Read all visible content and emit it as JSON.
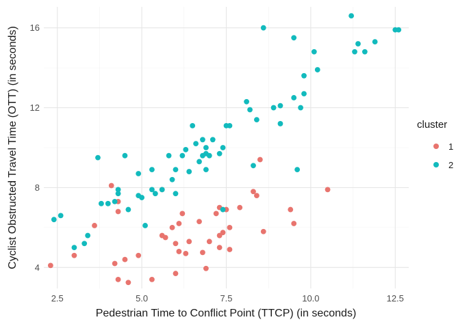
{
  "chart_data": {
    "type": "scatter",
    "title": "",
    "xlabel": "Pedestrian Time to Conflict Point (TTCP) (in seconds)",
    "ylabel": "Cyclist Obstructed Travel Time (OTT) (in seconds)",
    "xlim": [
      2.1,
      12.9
    ],
    "ylim": [
      2.95,
      17.05
    ],
    "x_ticks": [
      2.5,
      5.0,
      7.5,
      10.0,
      12.5
    ],
    "x_tick_labels": [
      "2.5",
      "5.0",
      "7.5",
      "10.0",
      "12.5"
    ],
    "y_ticks": [
      4,
      8,
      12,
      16
    ],
    "y_tick_labels": [
      "4",
      "8",
      "12",
      "16"
    ],
    "grid": true,
    "legend": {
      "title": "cluster",
      "position": "right"
    },
    "series": [
      {
        "name": "1",
        "color": "#E8746E",
        "points": [
          [
            2.3,
            4.1
          ],
          [
            3.0,
            4.6
          ],
          [
            3.6,
            6.1
          ],
          [
            4.1,
            8.1
          ],
          [
            4.2,
            4.2
          ],
          [
            4.3,
            6.8
          ],
          [
            4.3,
            3.4
          ],
          [
            4.3,
            7.3
          ],
          [
            4.5,
            4.4
          ],
          [
            4.6,
            3.25
          ],
          [
            4.9,
            4.6
          ],
          [
            5.3,
            3.4
          ],
          [
            5.6,
            7.9
          ],
          [
            5.6,
            5.6
          ],
          [
            5.7,
            5.5
          ],
          [
            5.9,
            6.0
          ],
          [
            6.0,
            3.7
          ],
          [
            6.0,
            5.2
          ],
          [
            6.1,
            4.8
          ],
          [
            6.1,
            6.2
          ],
          [
            6.2,
            6.7
          ],
          [
            6.3,
            4.7
          ],
          [
            6.4,
            5.3
          ],
          [
            6.7,
            6.3
          ],
          [
            6.8,
            4.75
          ],
          [
            6.9,
            3.95
          ],
          [
            7.0,
            5.3
          ],
          [
            7.2,
            6.7
          ],
          [
            7.3,
            7.0
          ],
          [
            7.3,
            5.6
          ],
          [
            7.3,
            5.0
          ],
          [
            7.4,
            5.75
          ],
          [
            7.5,
            6.9
          ],
          [
            7.6,
            6.0
          ],
          [
            7.6,
            4.9
          ],
          [
            7.9,
            7.0
          ],
          [
            8.3,
            7.8
          ],
          [
            8.4,
            7.6
          ],
          [
            8.5,
            9.4
          ],
          [
            8.6,
            5.8
          ],
          [
            9.4,
            6.9
          ],
          [
            9.5,
            6.2
          ],
          [
            10.5,
            7.9
          ]
        ]
      },
      {
        "name": "2",
        "color": "#12BABD",
        "points": [
          [
            2.4,
            6.4
          ],
          [
            2.6,
            6.6
          ],
          [
            3.0,
            5.0
          ],
          [
            3.3,
            5.2
          ],
          [
            3.4,
            5.6
          ],
          [
            3.7,
            9.5
          ],
          [
            3.8,
            7.2
          ],
          [
            4.0,
            7.2
          ],
          [
            4.2,
            7.3
          ],
          [
            4.3,
            7.7
          ],
          [
            4.3,
            7.9
          ],
          [
            4.5,
            9.6
          ],
          [
            4.6,
            6.9
          ],
          [
            4.9,
            8.7
          ],
          [
            4.9,
            7.6
          ],
          [
            5.0,
            7.5
          ],
          [
            5.1,
            6.1
          ],
          [
            5.3,
            8.9
          ],
          [
            5.3,
            7.9
          ],
          [
            5.4,
            7.7
          ],
          [
            5.6,
            7.9
          ],
          [
            5.8,
            9.6
          ],
          [
            5.9,
            8.4
          ],
          [
            6.0,
            8.9
          ],
          [
            6.0,
            7.7
          ],
          [
            6.2,
            9.6
          ],
          [
            6.3,
            9.9
          ],
          [
            6.4,
            8.8
          ],
          [
            6.5,
            11.1
          ],
          [
            6.6,
            10.2
          ],
          [
            6.7,
            9.3
          ],
          [
            6.8,
            10.4
          ],
          [
            6.8,
            9.6
          ],
          [
            6.9,
            10.0
          ],
          [
            6.9,
            9.7
          ],
          [
            6.9,
            8.9
          ],
          [
            7.0,
            9.6
          ],
          [
            7.1,
            10.4
          ],
          [
            7.3,
            9.7
          ],
          [
            7.4,
            6.9
          ],
          [
            7.4,
            10.0
          ],
          [
            7.5,
            11.1
          ],
          [
            7.6,
            11.1
          ],
          [
            8.1,
            12.3
          ],
          [
            8.2,
            11.9
          ],
          [
            8.3,
            9.1
          ],
          [
            8.4,
            11.4
          ],
          [
            8.6,
            16.0
          ],
          [
            8.9,
            12.0
          ],
          [
            9.1,
            12.1
          ],
          [
            9.1,
            11.2
          ],
          [
            9.5,
            15.5
          ],
          [
            9.5,
            12.5
          ],
          [
            9.6,
            8.9
          ],
          [
            9.7,
            12.0
          ],
          [
            9.8,
            13.6
          ],
          [
            9.8,
            12.7
          ],
          [
            10.1,
            14.8
          ],
          [
            10.2,
            13.9
          ],
          [
            11.2,
            16.6
          ],
          [
            11.3,
            14.8
          ],
          [
            11.4,
            15.2
          ],
          [
            11.6,
            14.8
          ],
          [
            11.9,
            15.3
          ],
          [
            12.5,
            15.9
          ],
          [
            12.6,
            15.9
          ]
        ]
      }
    ]
  }
}
